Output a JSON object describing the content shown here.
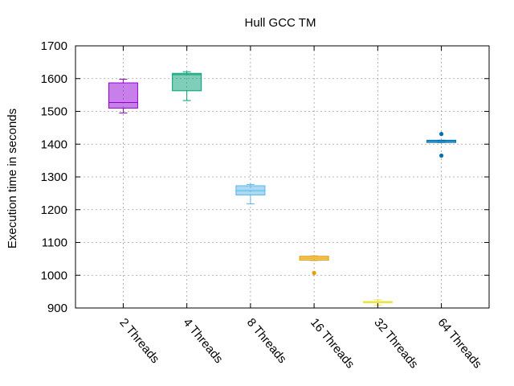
{
  "chart_data": {
    "type": "boxplot",
    "title": "Hull GCC TM",
    "xlabel": "",
    "ylabel": "Execution time in seconds",
    "ylim": [
      900,
      1700
    ],
    "yticks": [
      900,
      1000,
      1100,
      1200,
      1300,
      1400,
      1500,
      1600,
      1700
    ],
    "grid": true,
    "categories": [
      "2 Threads",
      "4 Threads",
      "8 Threads",
      "16 Threads",
      "32 Threads",
      "64 Threads"
    ],
    "boxes": [
      {
        "category": "2 Threads",
        "whisker_low": 1495,
        "q1": 1510,
        "median": 1527,
        "q3": 1587,
        "whisker_high": 1598,
        "outliers": [],
        "color": "#9400d3"
      },
      {
        "category": "4 Threads",
        "whisker_low": 1533,
        "q1": 1563,
        "median": 1612,
        "q3": 1616,
        "whisker_high": 1621,
        "outliers": [],
        "color": "#009e73"
      },
      {
        "category": "8 Threads",
        "whisker_low": 1218,
        "q1": 1245,
        "median": 1258,
        "q3": 1273,
        "whisker_high": 1277,
        "outliers": [],
        "color": "#56b4e9"
      },
      {
        "category": "16 Threads",
        "whisker_low": 1045,
        "q1": 1046,
        "median": 1052,
        "q3": 1058,
        "whisker_high": 1059,
        "outliers": [
          1007
        ],
        "color": "#e69f00"
      },
      {
        "category": "32 Threads",
        "whisker_low": 908,
        "q1": 916,
        "median": 918,
        "q3": 920,
        "whisker_high": 925,
        "outliers": [],
        "color": "#f0e442"
      },
      {
        "category": "64 Threads",
        "whisker_low": 1405,
        "q1": 1405,
        "median": 1409,
        "q3": 1412,
        "whisker_high": 1412,
        "outliers": [
          1431,
          1365
        ],
        "color": "#0072b2"
      }
    ]
  }
}
